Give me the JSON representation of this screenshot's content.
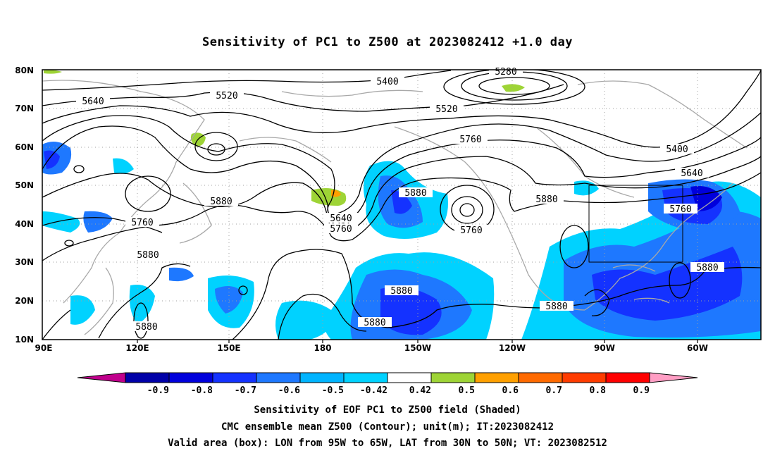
{
  "title": "Sensitivity of PC1 to Z500 at 2023082412 +1.0 day",
  "map": {
    "lat_labels": [
      "80N",
      "70N",
      "60N",
      "50N",
      "40N",
      "30N",
      "20N",
      "10N"
    ],
    "lon_labels": [
      "90E",
      "120E",
      "150E",
      "180",
      "150W",
      "120W",
      "90W",
      "60W"
    ],
    "valid_box": {
      "lon": [
        "95W",
        "65W"
      ],
      "lat": [
        "30N",
        "50N"
      ]
    },
    "contour_labels": [
      "5280",
      "5400",
      "5520",
      "5640",
      "5760",
      "5880",
      "5400",
      "5520",
      "5640",
      "5760",
      "5880",
      "5640",
      "5760",
      "5880",
      "5760",
      "5880",
      "5880",
      "5880",
      "5880",
      "5760",
      "5880",
      "5880"
    ]
  },
  "colorbar": {
    "levels": [
      "-0.9",
      "-0.8",
      "-0.7",
      "-0.6",
      "-0.5",
      "-0.42",
      "0.42",
      "0.5",
      "0.6",
      "0.7",
      "0.8",
      "0.9"
    ],
    "colors": [
      "#0000a8",
      "#0000dc",
      "#1432ff",
      "#1e78ff",
      "#00b4ff",
      "#00d2ff",
      "#ffffff",
      "#9ed436",
      "#ffa000",
      "#ff6a00",
      "#ff3c00",
      "#ff0000"
    ],
    "low_end_color": "#c0008c",
    "high_end_color": "#ff9ec4"
  },
  "footer": {
    "line1": "Sensitivity of EOF PC1 to Z500 field (Shaded)",
    "line2": "CMC ensemble mean Z500 (Contour); unit(m); IT:2023082412",
    "line3": "Valid area (box): LON from 95W to 65W, LAT from 30N to 50N; VT: 2023082512"
  }
}
